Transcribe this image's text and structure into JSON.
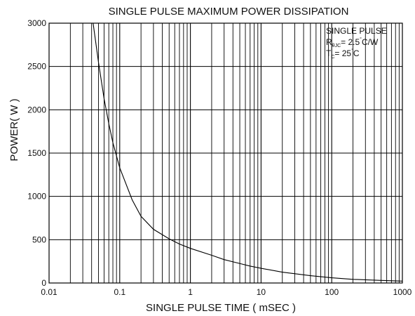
{
  "chart_data": {
    "type": "line",
    "title": "SINGLE PULSE MAXIMUM POWER DISSIPATION",
    "xlabel": "SINGLE PULSE TIME ( mSEC )",
    "ylabel": "POWER( W )",
    "x_scale": "log",
    "xlim": [
      0.01,
      1000
    ],
    "ylim": [
      0,
      3000
    ],
    "x_ticks": [
      {
        "value": 0.01,
        "label": "0.01"
      },
      {
        "value": 0.1,
        "label": "0.1"
      },
      {
        "value": 1,
        "label": "1"
      },
      {
        "value": 10,
        "label": "10"
      },
      {
        "value": 100,
        "label": "100"
      },
      {
        "value": 1000,
        "label": "1000"
      }
    ],
    "y_ticks": [
      {
        "value": 0,
        "label": "0"
      },
      {
        "value": 500,
        "label": "500"
      },
      {
        "value": 1000,
        "label": "1000"
      },
      {
        "value": 1500,
        "label": "1500"
      },
      {
        "value": 2000,
        "label": "2000"
      },
      {
        "value": 2500,
        "label": "2500"
      },
      {
        "value": 3000,
        "label": "3000"
      }
    ],
    "grid": true,
    "series": [
      {
        "color": "#000000",
        "x": [
          0.042,
          0.05,
          0.06,
          0.07,
          0.08,
          0.1,
          0.15,
          0.2,
          0.3,
          0.5,
          0.7,
          1,
          2,
          3,
          5,
          7,
          10,
          20,
          50,
          100,
          200,
          500,
          1000
        ],
        "y": [
          3000,
          2550,
          2130,
          1840,
          1620,
          1330,
          960,
          770,
          620,
          510,
          450,
          400,
          320,
          270,
          225,
          195,
          170,
          125,
          85,
          60,
          42,
          30,
          22
        ]
      }
    ],
    "annotation": {
      "line1": "SINGLE PULSE",
      "r_main": "R",
      "r_sub": "θJC",
      "r_value": "= 2.5",
      "r_unit": "C/W",
      "t_main": "T",
      "t_sub": "C",
      "t_value": "= 25",
      "t_unit": "C",
      "degree": "°"
    }
  }
}
